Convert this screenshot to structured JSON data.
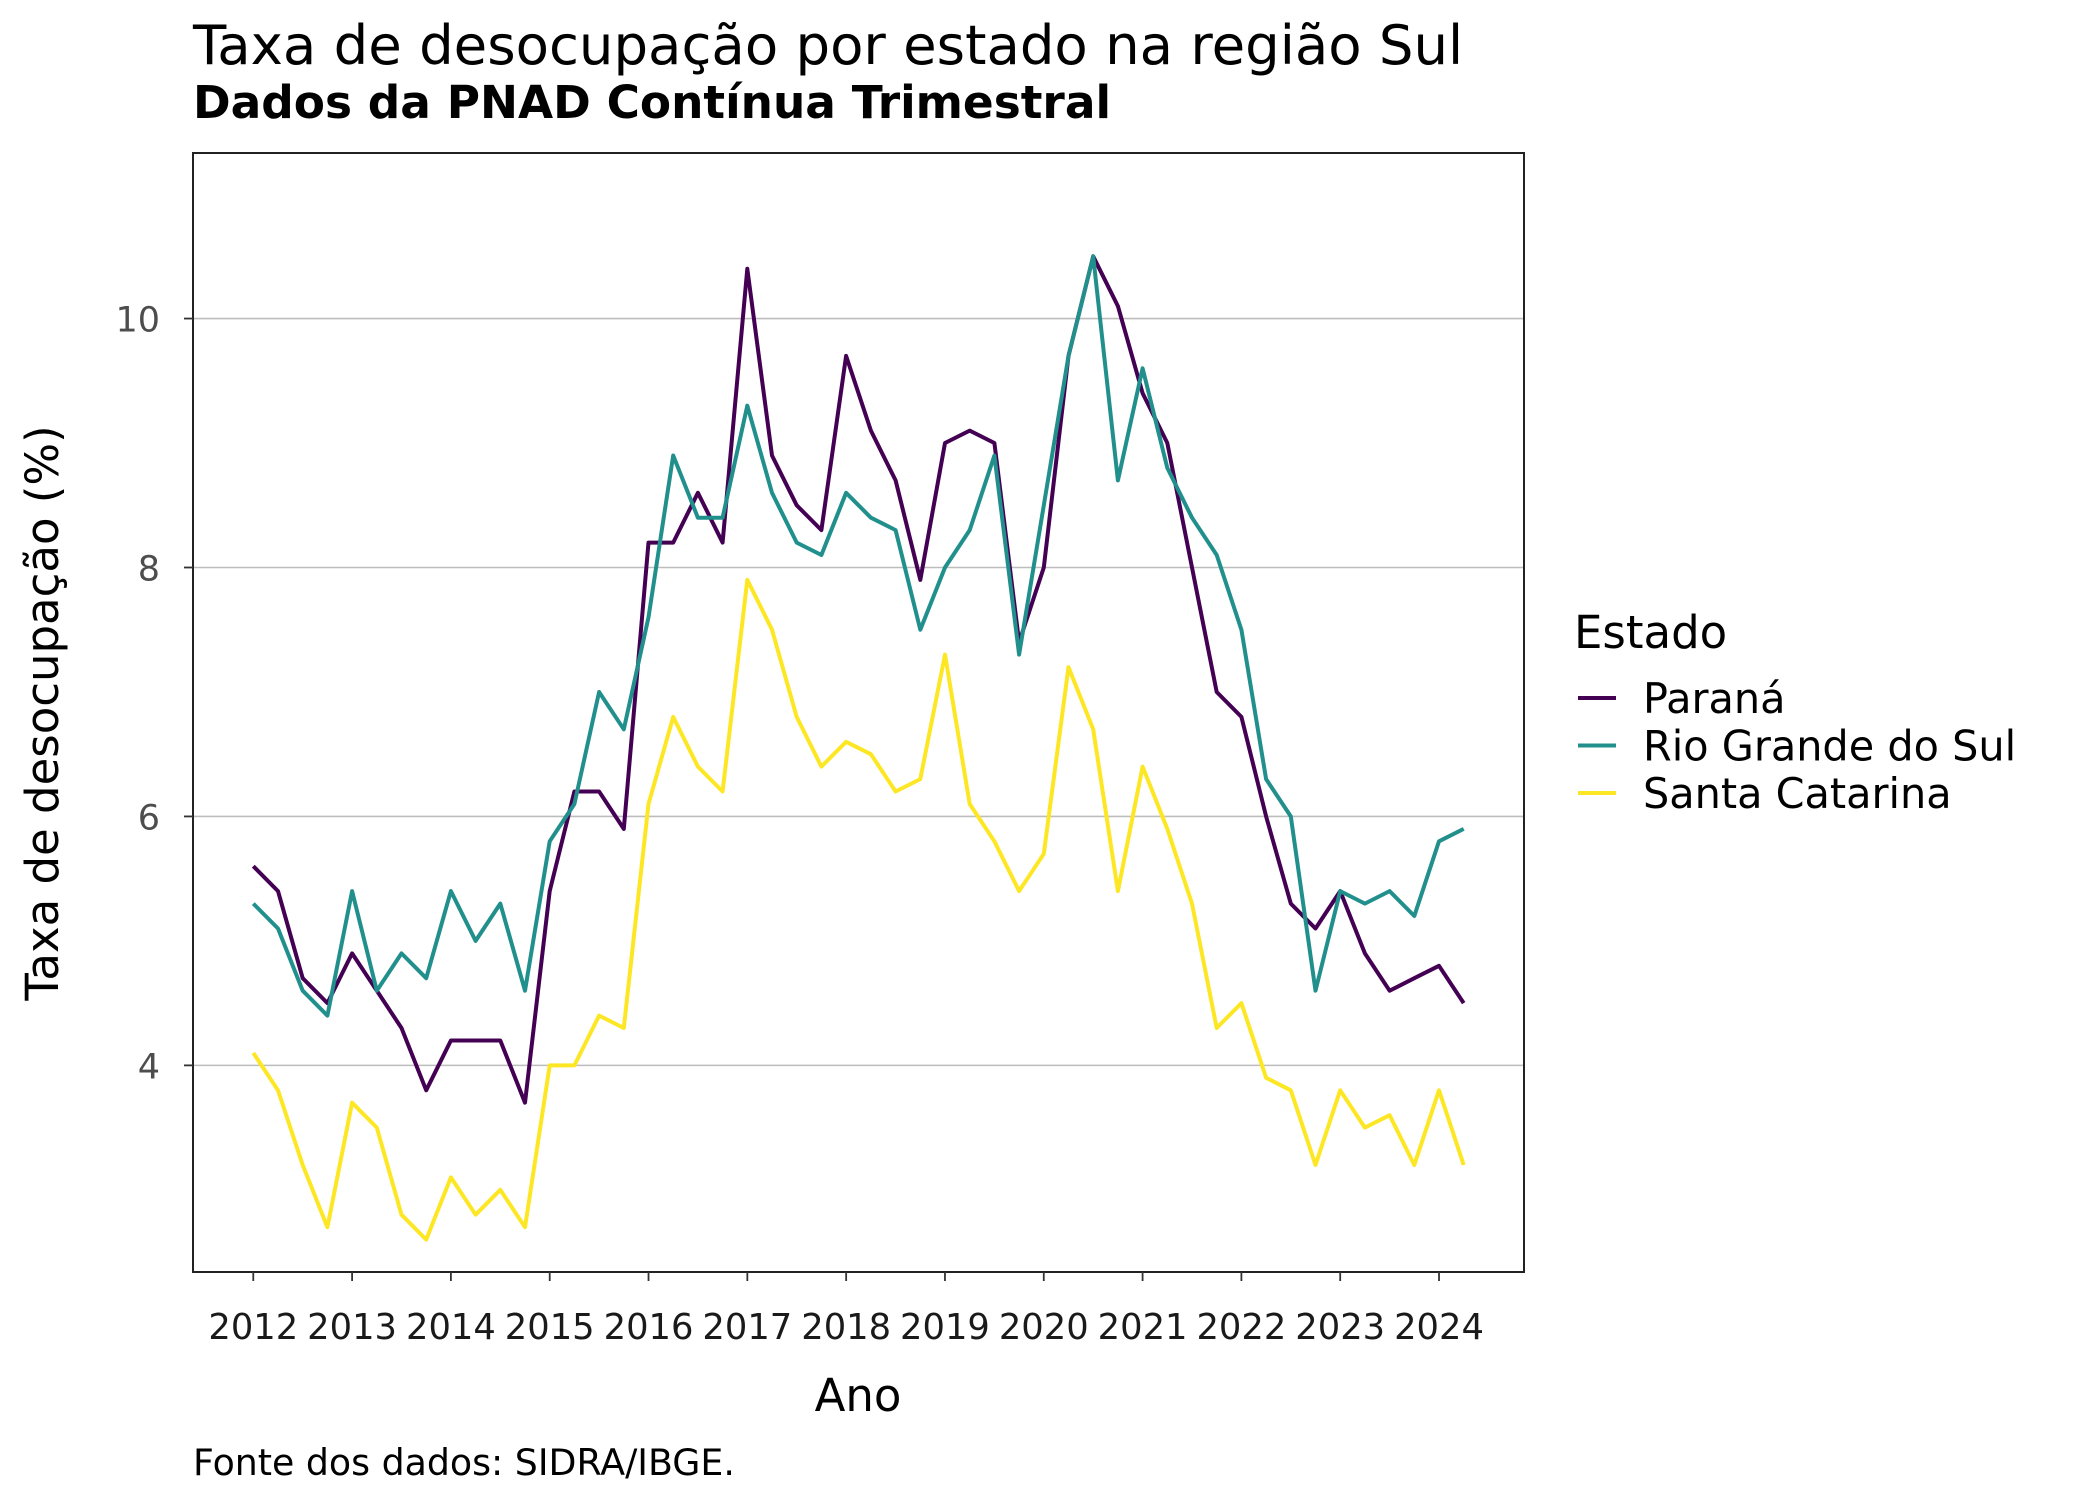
{
  "chart_data": {
    "type": "line",
    "title": "Taxa de desocupação por estado na região Sul",
    "subtitle": "Dados da PNAD Contínua Trimestral",
    "xlabel": "Ano",
    "ylabel": "Taxa de desocupação (%)",
    "caption": "Fonte dos dados: SIDRA/IBGE.",
    "legend_title": "Estado",
    "legend_position": "right",
    "grid": "horizontal",
    "xlim": [
      2011.39,
      2024.86
    ],
    "ylim": [
      2.34,
      11.33
    ],
    "x_ticks": [
      "2012",
      "2013",
      "2014",
      "2015",
      "2016",
      "2017",
      "2018",
      "2019",
      "2020",
      "2021",
      "2022",
      "2023",
      "2024"
    ],
    "y_ticks": [
      "4",
      "6",
      "8",
      "10"
    ],
    "x": [
      2012,
      2012.25,
      2012.5,
      2012.75,
      2013,
      2013.25,
      2013.5,
      2013.75,
      2014,
      2014.25,
      2014.5,
      2014.75,
      2015,
      2015.25,
      2015.5,
      2015.75,
      2016,
      2016.25,
      2016.5,
      2016.75,
      2017,
      2017.25,
      2017.5,
      2017.75,
      2018,
      2018.25,
      2018.5,
      2018.75,
      2019,
      2019.25,
      2019.5,
      2019.75,
      2020,
      2020.25,
      2020.5,
      2020.75,
      2021,
      2021.25,
      2021.5,
      2021.75,
      2022,
      2022.25,
      2022.5,
      2022.75,
      2023,
      2023.25,
      2023.5,
      2023.75,
      2024,
      2024.25
    ],
    "series": [
      {
        "name": "Paraná",
        "color": "#440154",
        "values": [
          5.6,
          5.4,
          4.7,
          4.5,
          4.9,
          4.6,
          4.3,
          3.8,
          4.2,
          4.2,
          4.2,
          3.7,
          5.4,
          6.2,
          6.2,
          5.9,
          8.2,
          8.2,
          8.6,
          8.2,
          10.4,
          8.9,
          8.5,
          8.3,
          9.7,
          9.1,
          8.7,
          7.9,
          9.0,
          9.1,
          9.0,
          7.4,
          8.0,
          9.7,
          10.5,
          10.1,
          9.4,
          9.0,
          8.0,
          7.0,
          6.8,
          6.0,
          5.3,
          5.1,
          5.4,
          4.9,
          4.6,
          4.7,
          4.8,
          4.5
        ]
      },
      {
        "name": "Rio Grande do Sul",
        "color": "#21908C",
        "values": [
          5.3,
          5.1,
          4.6,
          4.4,
          5.4,
          4.6,
          4.9,
          4.7,
          5.4,
          5.0,
          5.3,
          4.6,
          5.8,
          6.1,
          7.0,
          6.7,
          7.6,
          8.9,
          8.4,
          8.4,
          9.3,
          8.6,
          8.2,
          8.1,
          8.6,
          8.4,
          8.3,
          7.5,
          8.0,
          8.3,
          8.9,
          7.3,
          8.5,
          9.7,
          10.5,
          8.7,
          9.6,
          8.8,
          8.4,
          8.1,
          7.5,
          6.3,
          6.0,
          4.6,
          5.4,
          5.3,
          5.4,
          5.2,
          5.8,
          5.9
        ]
      },
      {
        "name": "Santa Catarina",
        "color": "#FDE725",
        "values": [
          4.1,
          3.8,
          3.2,
          2.7,
          3.7,
          3.5,
          2.8,
          2.6,
          3.1,
          2.8,
          3.0,
          2.7,
          4.0,
          4.0,
          4.4,
          4.3,
          6.1,
          6.8,
          6.4,
          6.2,
          7.9,
          7.5,
          6.8,
          6.4,
          6.6,
          6.5,
          6.2,
          6.3,
          7.3,
          6.1,
          5.8,
          5.4,
          5.7,
          7.2,
          6.7,
          5.4,
          6.4,
          5.9,
          5.3,
          4.3,
          4.5,
          3.9,
          3.8,
          3.2,
          3.8,
          3.5,
          3.6,
          3.2,
          3.8,
          3.2
        ]
      }
    ]
  }
}
